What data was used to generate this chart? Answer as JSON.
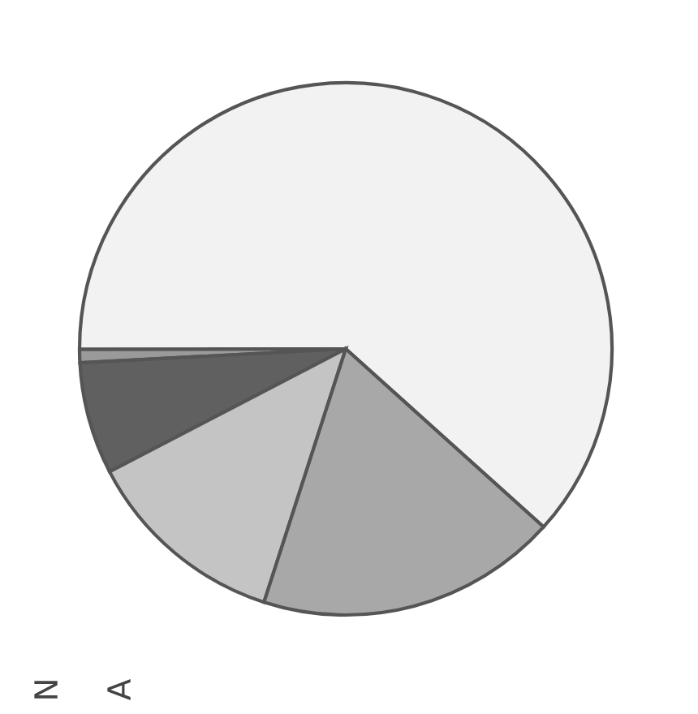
{
  "chart_data": {
    "type": "pie",
    "categories": [
      null,
      null,
      null,
      null,
      null
    ],
    "values": [
      61.7,
      0.8,
      6.8,
      12.4,
      18.3
    ],
    "colors": [
      "#f2f2f2",
      "#9a9a9a",
      "#606060",
      "#c4c4c4",
      "#a8a8a8"
    ],
    "annotations": [
      "N",
      "A"
    ]
  }
}
